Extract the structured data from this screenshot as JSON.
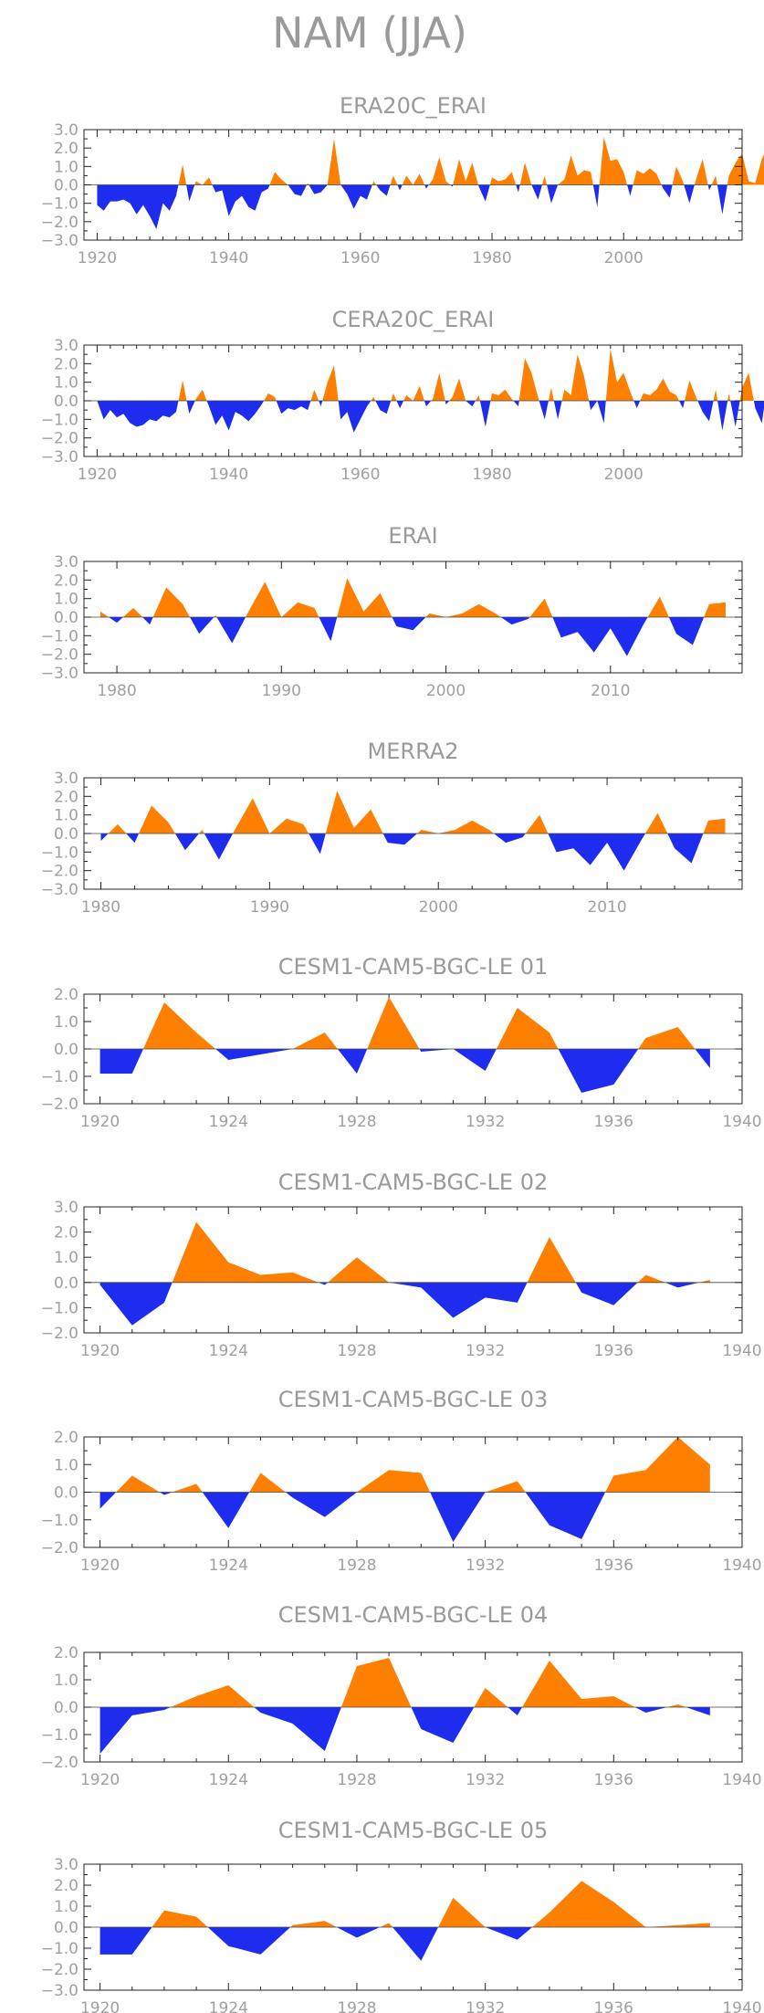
{
  "colors": {
    "positive": "#ff8000",
    "negative": "#1e2cf0",
    "axis": "#222222",
    "text": "#a0a0a0"
  },
  "chart_data": {
    "title": "NAM (JJA)",
    "panels": [
      {
        "type": "area",
        "title": "ERA20C_ERAI",
        "xlim": [
          1918,
          2018
        ],
        "ylim": [
          -3,
          3
        ],
        "xticks": [
          1920,
          1940,
          1960,
          1980,
          2000
        ],
        "yticks": [
          -3,
          -2,
          -1,
          0,
          1,
          2,
          3
        ],
        "xstart": 1920,
        "values": [
          -1.1,
          -1.4,
          -0.9,
          -0.9,
          -0.8,
          -1.0,
          -1.6,
          -1.1,
          -1.7,
          -2.4,
          -1.0,
          -1.4,
          -0.6,
          1.1,
          -0.9,
          0.2,
          0.0,
          0.4,
          -0.4,
          -0.3,
          -1.7,
          -0.9,
          -0.6,
          -1.2,
          -1.4,
          -0.4,
          -0.2,
          0.7,
          0.3,
          0.0,
          -0.5,
          -0.6,
          0.1,
          -0.5,
          -0.4,
          0.0,
          2.5,
          0.0,
          -0.5,
          -1.3,
          -0.6,
          -0.8,
          0.2,
          -0.3,
          -0.6,
          0.5,
          -0.3,
          0.5,
          0.0,
          0.6,
          -0.2,
          0.3,
          1.5,
          0.2,
          -0.1,
          1.4,
          0.2,
          1.2,
          -0.1,
          -0.9,
          0.4,
          0.2,
          0.3,
          0.7,
          -0.4,
          1.2,
          0.0,
          -0.8,
          0.5,
          -1.0,
          0.0,
          0.3,
          1.6,
          0.5,
          0.8,
          0.7,
          -1.2,
          2.6,
          1.3,
          1.4,
          0.7,
          -0.6,
          0.8,
          0.6,
          0.9,
          0.6,
          -0.2,
          -0.7,
          1.0,
          0.2,
          -1.0,
          0.3,
          1.4,
          -0.3,
          0.5,
          -1.6,
          0.5,
          1.2,
          1.7,
          0.2,
          0.1,
          1.4,
          2.2
        ]
      },
      {
        "type": "area",
        "title": "CERA20C_ERAI",
        "xlim": [
          1918,
          2018
        ],
        "ylim": [
          -3,
          3
        ],
        "xticks": [
          1920,
          1940,
          1960,
          1980,
          2000
        ],
        "yticks": [
          -3,
          -2,
          -1,
          0,
          1,
          2,
          3
        ],
        "xstart": 1920,
        "values": [
          0.0,
          -1.0,
          -0.5,
          -0.9,
          -0.7,
          -1.2,
          -1.4,
          -1.3,
          -1.0,
          -1.1,
          -0.8,
          -0.9,
          -0.6,
          1.1,
          -0.7,
          0.1,
          0.6,
          -0.3,
          -1.3,
          -0.8,
          -1.6,
          -0.6,
          -0.8,
          -1.1,
          -0.7,
          -0.2,
          0.4,
          0.2,
          -0.7,
          -0.4,
          -0.5,
          -0.3,
          -0.5,
          0.6,
          -0.3,
          1.0,
          1.9,
          -1.0,
          -0.6,
          -1.7,
          -1.0,
          -0.3,
          0.2,
          -0.5,
          -0.7,
          0.4,
          -0.4,
          0.3,
          0.0,
          0.8,
          -0.3,
          0.1,
          1.5,
          -0.2,
          0.2,
          1.2,
          0.0,
          -0.3,
          0.3,
          -1.4,
          0.4,
          0.3,
          0.6,
          0.1,
          -0.3,
          2.3,
          1.5,
          0.2,
          -1.0,
          0.7,
          -1.0,
          0.6,
          0.3,
          2.5,
          1.3,
          -0.5,
          0.0,
          -1.2,
          2.8,
          1.0,
          1.5,
          0.5,
          -0.4,
          0.4,
          0.3,
          0.6,
          1.2,
          0.5,
          0.3,
          -0.4,
          1.1,
          0.2,
          -0.6,
          -1.1,
          0.6,
          -1.6,
          0.4,
          -1.4,
          0.7,
          1.5,
          -0.4,
          -1.2,
          1.3,
          1.5
        ]
      },
      {
        "type": "area",
        "title": "ERAI",
        "xlim": [
          1978,
          2018
        ],
        "ylim": [
          -3,
          3
        ],
        "xticks": [
          1980,
          1990,
          2000,
          2010
        ],
        "yticks": [
          -3,
          -2,
          -1,
          0,
          1,
          2,
          3
        ],
        "xstart": 1979,
        "values": [
          0.3,
          -0.3,
          0.5,
          -0.4,
          1.6,
          0.7,
          -0.9,
          0.1,
          -1.4,
          0.3,
          1.9,
          0.0,
          0.8,
          0.5,
          -1.3,
          2.1,
          0.3,
          1.3,
          -0.5,
          -0.7,
          0.2,
          0.0,
          0.2,
          0.7,
          0.2,
          -0.4,
          -0.1,
          1.0,
          -1.1,
          -0.8,
          -1.9,
          -0.6,
          -2.1,
          -0.4,
          1.1,
          -0.9,
          -1.5,
          0.7,
          0.8
        ]
      },
      {
        "type": "area",
        "title": "MERRA2",
        "xlim": [
          1979,
          2018
        ],
        "ylim": [
          -3,
          3
        ],
        "xticks": [
          1980,
          1990,
          2000,
          2010
        ],
        "yticks": [
          -3,
          -2,
          -1,
          0,
          1,
          2,
          3
        ],
        "xstart": 1980,
        "values": [
          -0.4,
          0.5,
          -0.5,
          1.5,
          0.6,
          -0.9,
          0.2,
          -1.4,
          0.3,
          1.9,
          0.0,
          0.8,
          0.5,
          -1.1,
          2.3,
          0.3,
          1.3,
          -0.5,
          -0.6,
          0.2,
          0.0,
          0.2,
          0.7,
          0.2,
          -0.5,
          -0.2,
          1.0,
          -1.0,
          -0.8,
          -1.7,
          -0.5,
          -2.0,
          -0.4,
          1.1,
          -0.8,
          -1.6,
          0.7,
          0.8
        ]
      },
      {
        "type": "area",
        "title": "CESM1-CAM5-BGC-LE 01",
        "xlim": [
          1919.5,
          1940
        ],
        "ylim": [
          -2,
          2
        ],
        "xticks": [
          1920,
          1924,
          1928,
          1932,
          1936,
          1940
        ],
        "yticks": [
          -2,
          -1,
          0,
          1,
          2
        ],
        "xstart": 1920,
        "values": [
          -0.9,
          -0.9,
          1.7,
          0.6,
          -0.4,
          -0.2,
          0.0,
          0.6,
          -0.9,
          1.9,
          -0.1,
          0.0,
          -0.8,
          1.5,
          0.6,
          -1.6,
          -1.3,
          0.4,
          0.8,
          -0.7
        ]
      },
      {
        "type": "area",
        "title": "CESM1-CAM5-BGC-LE 02",
        "xlim": [
          1919.5,
          1940
        ],
        "ylim": [
          -2,
          3
        ],
        "xticks": [
          1920,
          1924,
          1928,
          1932,
          1936,
          1940
        ],
        "yticks": [
          -2,
          -1,
          0,
          1,
          2,
          3
        ],
        "xstart": 1920,
        "values": [
          -0.1,
          -1.7,
          -0.8,
          2.4,
          0.8,
          0.3,
          0.4,
          -0.1,
          1.0,
          0.0,
          -0.2,
          -1.4,
          -0.6,
          -0.8,
          1.8,
          -0.4,
          -0.9,
          0.3,
          -0.2,
          0.1
        ]
      },
      {
        "type": "area",
        "title": "CESM1-CAM5-BGC-LE 03",
        "xlim": [
          1919.5,
          1940
        ],
        "ylim": [
          -2,
          2
        ],
        "xticks": [
          1920,
          1924,
          1928,
          1932,
          1936,
          1940
        ],
        "yticks": [
          -2,
          -1,
          0,
          1,
          2
        ],
        "xstart": 1920,
        "values": [
          -0.6,
          0.6,
          -0.1,
          0.3,
          -1.3,
          0.7,
          -0.2,
          -0.9,
          0.0,
          0.8,
          0.7,
          -1.8,
          0.0,
          0.4,
          -1.2,
          -1.7,
          0.6,
          0.8,
          2.0,
          1.0
        ]
      },
      {
        "type": "area",
        "title": "CESM1-CAM5-BGC-LE 04",
        "xlim": [
          1919.5,
          1940
        ],
        "ylim": [
          -2,
          2
        ],
        "xticks": [
          1920,
          1924,
          1928,
          1932,
          1936,
          1940
        ],
        "yticks": [
          -2,
          -1,
          0,
          1,
          2
        ],
        "xstart": 1920,
        "values": [
          -1.7,
          -0.3,
          -0.1,
          0.4,
          0.8,
          -0.2,
          -0.6,
          -1.6,
          1.5,
          1.8,
          -0.8,
          -1.3,
          0.7,
          -0.3,
          1.7,
          0.3,
          0.4,
          -0.2,
          0.1,
          -0.3
        ]
      },
      {
        "type": "area",
        "title": "CESM1-CAM5-BGC-LE 05",
        "xlim": [
          1919.5,
          1940
        ],
        "ylim": [
          -3,
          3
        ],
        "xticks": [
          1920,
          1924,
          1928,
          1932,
          1936,
          1940
        ],
        "yticks": [
          -3,
          -2,
          -1,
          0,
          1,
          2,
          3
        ],
        "xstart": 1920,
        "values": [
          -1.3,
          -1.3,
          0.8,
          0.5,
          -0.9,
          -1.3,
          0.1,
          0.3,
          -0.5,
          0.2,
          -1.6,
          1.4,
          0.0,
          -0.6,
          0.7,
          2.2,
          1.2,
          0.0,
          0.1,
          0.2
        ]
      }
    ]
  }
}
